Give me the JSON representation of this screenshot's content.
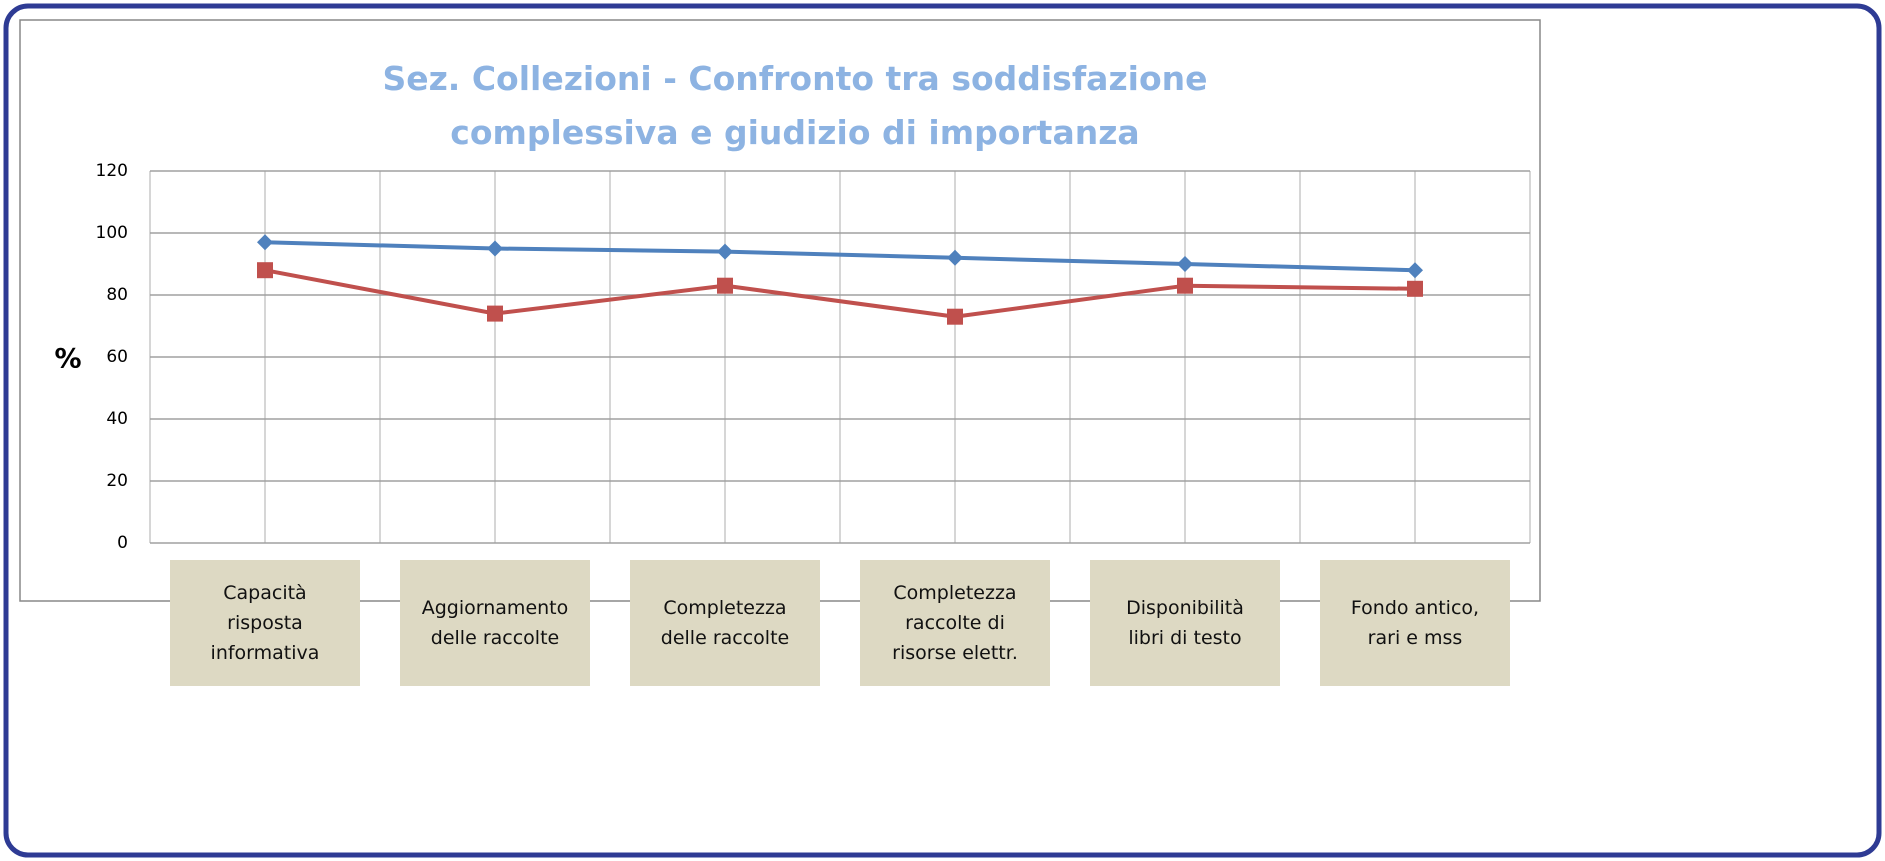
{
  "chart_data": {
    "type": "line",
    "title": "Sez. Collezioni - Confronto tra soddisfazione\ncomplessiva e giudizio di importanza",
    "y_label": "%",
    "categories": [
      "Capacità\nrisposta\ninformativa",
      "Aggiornamento\ndelle raccolte",
      "Completezza\ndelle raccolte",
      "Completezza\nraccolte di\nrisorse elettr.",
      "Disponibilità\nlibri di testo",
      "Fondo antico,\nrari e mss"
    ],
    "series": [
      {
        "color": "#4f81bd",
        "marker": "diamond",
        "values": [
          97,
          95,
          94,
          92,
          90,
          88
        ]
      },
      {
        "color": "#c0504d",
        "marker": "square",
        "values": [
          88,
          74,
          83,
          73,
          83,
          82
        ]
      }
    ],
    "ylim": [
      0,
      120
    ],
    "yticks": [
      0,
      20,
      40,
      60,
      80,
      100,
      120
    ],
    "grid": true
  }
}
